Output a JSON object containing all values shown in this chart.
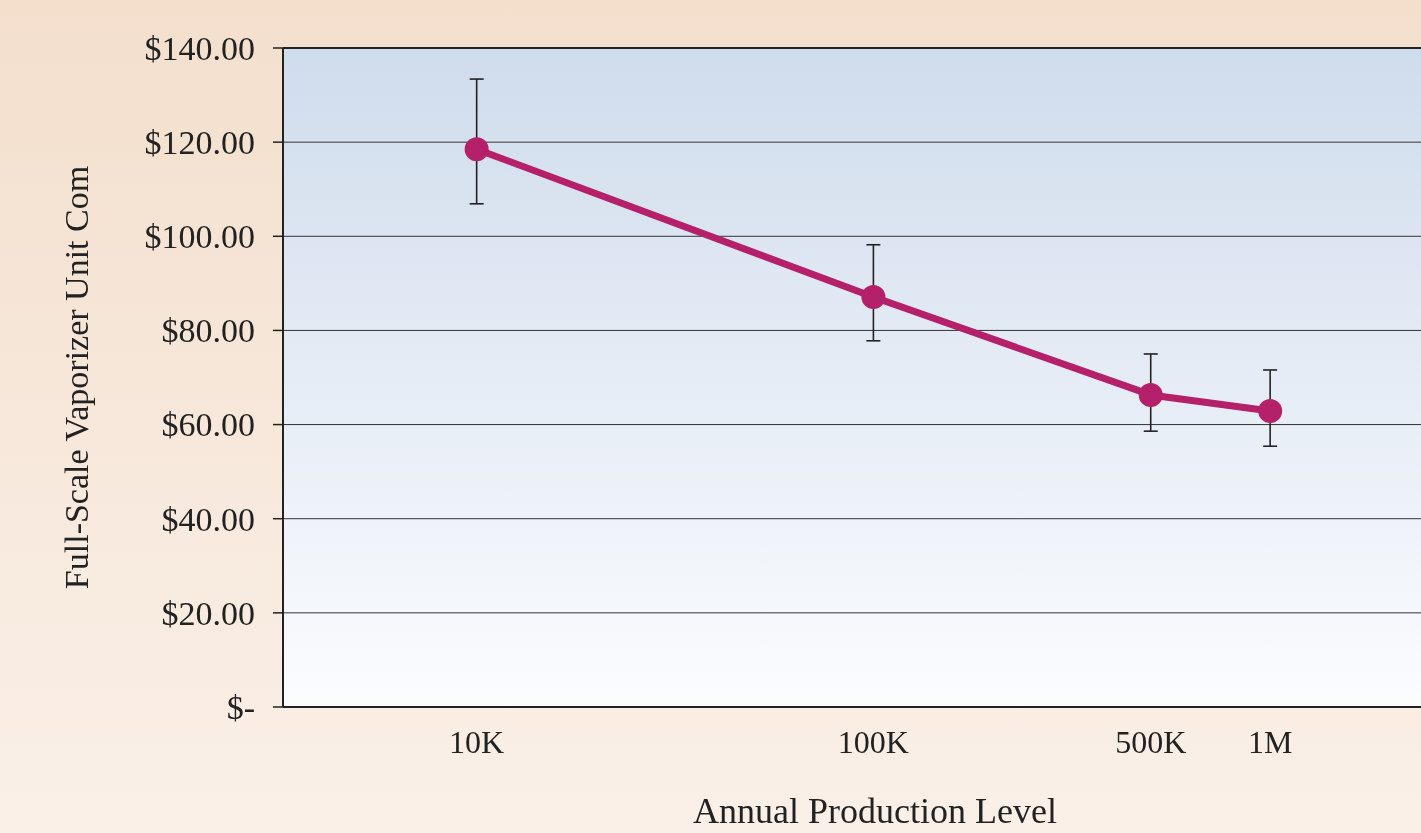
{
  "chart_data": {
    "type": "line",
    "xlabel": "Annual Production Level",
    "ylabel": "Full-Scale Vaporizer Unit Com",
    "x": [
      10000,
      100000,
      500000,
      1000000
    ],
    "series": [
      {
        "color": "#b5206a",
        "values": [
          118.5,
          87.1,
          66.3,
          62.9
        ],
        "errors": [
          [
            106.9,
            133.4
          ],
          [
            77.8,
            98.2
          ],
          [
            58.6,
            75.0
          ],
          [
            55.4,
            71.6
          ]
        ]
      }
    ],
    "log": "x",
    "xlim": [
      3250,
      2400000
    ],
    "xticks": [
      {
        "value": 10000,
        "label": "10K"
      },
      {
        "value": 100000,
        "label": "100K"
      },
      {
        "value": 500000,
        "label": "500K"
      },
      {
        "value": 1000000,
        "label": "1M"
      }
    ],
    "ylim": [
      0,
      140
    ],
    "yticks": [
      {
        "value": 0,
        "label": "$-"
      },
      {
        "value": 20,
        "label": "$20.00"
      },
      {
        "value": 40,
        "label": "$40.00"
      },
      {
        "value": 60,
        "label": "$60.00"
      },
      {
        "value": 80,
        "label": "$80.00"
      },
      {
        "value": 100,
        "label": "$100.00"
      },
      {
        "value": 120,
        "label": "$120.00"
      },
      {
        "value": 140,
        "label": "$140.00"
      }
    ],
    "grid": "y",
    "marker": "circle",
    "line_style": "solid"
  }
}
